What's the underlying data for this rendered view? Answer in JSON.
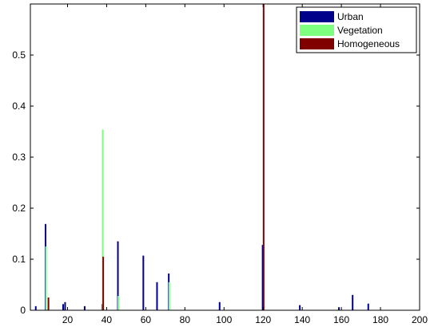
{
  "chart_data": {
    "type": "bar",
    "title": "",
    "xlabel": "",
    "ylabel": "",
    "xlim": [
      1,
      200
    ],
    "ylim": [
      0,
      0.6
    ],
    "xticks": [
      20,
      40,
      60,
      80,
      100,
      120,
      140,
      160,
      180,
      200
    ],
    "xtick_labels": [
      "20",
      "40",
      "60",
      "80",
      "100",
      "120",
      "140",
      "160",
      "180",
      "200"
    ],
    "yticks": [
      0,
      0.1,
      0.2,
      0.3,
      0.4,
      0.5
    ],
    "ytick_labels": [
      "0",
      "0.1",
      "0.2",
      "0.3",
      "0.4",
      "0.5"
    ],
    "grid": false,
    "legend_position": "top-right",
    "series": [
      {
        "name": "Urban",
        "color": "#00008b",
        "points": [
          {
            "x": 4,
            "y": 0.008
          },
          {
            "x": 9,
            "y": 0.169
          },
          {
            "x": 18,
            "y": 0.012
          },
          {
            "x": 19,
            "y": 0.016
          },
          {
            "x": 29,
            "y": 0.008
          },
          {
            "x": 38,
            "y": 0.012
          },
          {
            "x": 46,
            "y": 0.135
          },
          {
            "x": 59,
            "y": 0.107
          },
          {
            "x": 66,
            "y": 0.055
          },
          {
            "x": 72,
            "y": 0.072
          },
          {
            "x": 98,
            "y": 0.016
          },
          {
            "x": 120,
            "y": 0.128
          },
          {
            "x": 139,
            "y": 0.01
          },
          {
            "x": 159,
            "y": 0.006
          },
          {
            "x": 166,
            "y": 0.03
          },
          {
            "x": 174,
            "y": 0.013
          }
        ]
      },
      {
        "name": "Vegetation",
        "color": "#7fff7f",
        "points": [
          {
            "x": 9,
            "y": 0.125
          },
          {
            "x": 38,
            "y": 0.354
          },
          {
            "x": 46,
            "y": 0.028
          },
          {
            "x": 72,
            "y": 0.055
          }
        ]
      },
      {
        "name": "Homogeneous",
        "color": "#800000",
        "points": [
          {
            "x": 10,
            "y": 0.025
          },
          {
            "x": 38,
            "y": 0.105
          },
          {
            "x": 120,
            "y": 0.6
          }
        ]
      }
    ]
  }
}
